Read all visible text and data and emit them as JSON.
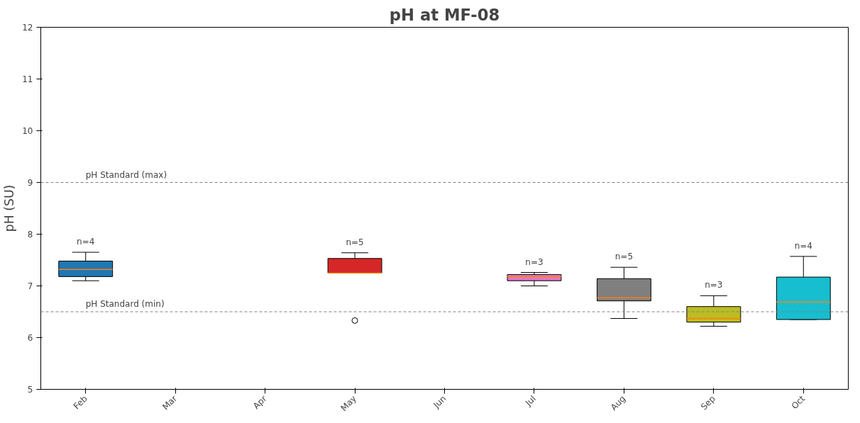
{
  "chart_data": {
    "type": "box",
    "title": "pH at MF-08",
    "ylabel": "pH (SU)",
    "categories": [
      "Feb",
      "Mar",
      "Apr",
      "May",
      "Jun",
      "Jul",
      "Aug",
      "Sep",
      "Oct"
    ],
    "boxes": [
      {
        "low": 7.1,
        "q1": 7.18,
        "median": 7.32,
        "q3": 7.48,
        "high": 7.65
      },
      null,
      null,
      {
        "low": 7.25,
        "q1": 7.25,
        "median": 7.25,
        "q3": 7.53,
        "high": 7.64,
        "outliers": [
          6.33
        ]
      },
      null,
      {
        "low": 7.0,
        "q1": 7.1,
        "median": 7.18,
        "q3": 7.22,
        "high": 7.26
      },
      {
        "low": 6.37,
        "q1": 6.71,
        "median": 6.77,
        "q3": 7.14,
        "high": 7.36
      },
      {
        "low": 6.22,
        "q1": 6.3,
        "median": 6.37,
        "q3": 6.6,
        "high": 6.81
      },
      {
        "low": 6.35,
        "q1": 6.35,
        "median": 6.69,
        "q3": 7.17,
        "high": 7.57
      }
    ],
    "colors": [
      "#1f77b4",
      null,
      null,
      "#d62728",
      null,
      "#e377c2",
      "#7f7f7f",
      "#bcbd22",
      "#17becf"
    ],
    "ylim": [
      5,
      12
    ],
    "yticks": [
      5,
      6,
      7,
      8,
      9,
      10,
      11,
      12
    ],
    "grid": false,
    "ref_lines": [
      {
        "axis": "y",
        "value": 9,
        "label": "pH Standard (max)",
        "color": "#808080",
        "line_style": "dashed"
      },
      {
        "axis": "y",
        "value": 6.5,
        "label": "pH Standard (min)",
        "color": "#808080",
        "line_style": "dashed"
      }
    ],
    "annotations": [
      {
        "text": "n=4",
        "x": "Feb",
        "y": 7.65
      },
      {
        "text": "n=5",
        "x": "May",
        "y": 7.64
      },
      {
        "text": "n=3",
        "x": "Jul",
        "y": 7.26
      },
      {
        "text": "n=5",
        "x": "Aug",
        "y": 7.36
      },
      {
        "text": "n=3",
        "x": "Sep",
        "y": 6.81
      },
      {
        "text": "n=4",
        "x": "Oct",
        "y": 7.57
      }
    ]
  }
}
